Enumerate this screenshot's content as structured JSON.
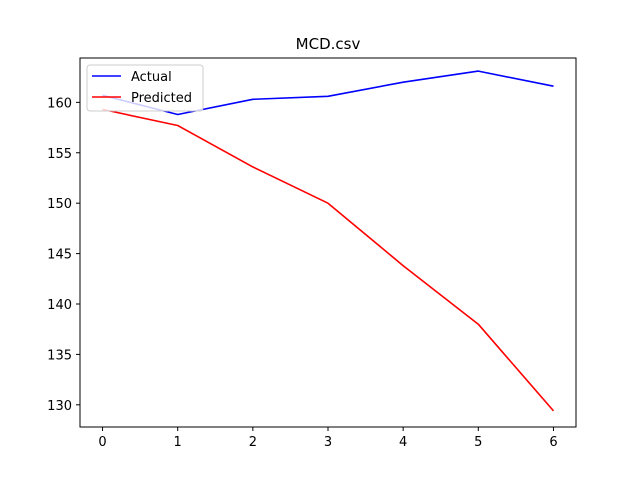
{
  "chart_data": {
    "type": "line",
    "title": "MCD.csv",
    "xlabel": "",
    "ylabel": "",
    "x": [
      0,
      1,
      2,
      3,
      4,
      5,
      6
    ],
    "xlim": [
      -0.3,
      6.3
    ],
    "ylim": [
      127.8,
      164.4
    ],
    "xticks": [
      0,
      1,
      2,
      3,
      4,
      5,
      6
    ],
    "yticks": [
      130,
      135,
      140,
      145,
      150,
      155,
      160
    ],
    "grid": false,
    "legend_position": "upper-left",
    "series": [
      {
        "name": "Actual",
        "color": "#0000ff",
        "values": [
          160.7,
          158.8,
          160.3,
          160.6,
          162.0,
          163.1,
          161.6
        ]
      },
      {
        "name": "Predicted",
        "color": "#ff0000",
        "values": [
          159.3,
          157.7,
          153.6,
          150.0,
          143.8,
          138.0,
          129.4
        ]
      }
    ]
  }
}
